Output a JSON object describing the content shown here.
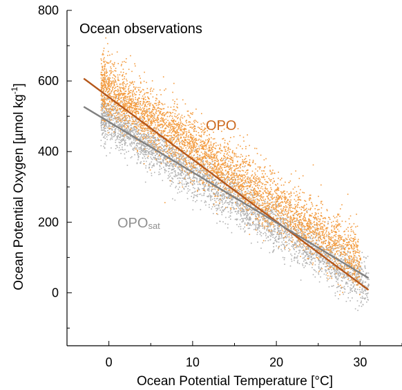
{
  "chart_data": {
    "type": "scatter",
    "title": "",
    "xlabel": "Ocean Potential Temperature [°C]",
    "ylabel_main": "Ocean Potential Oxygen  [µmol kg",
    "ylabel_sup": "-1",
    "ylabel_end": "]",
    "xlim": [
      -5,
      35
    ],
    "ylim": [
      -150,
      800
    ],
    "x_ticks": [
      0,
      10,
      20,
      30
    ],
    "x_tick_labels": [
      "0",
      "10",
      "20",
      "30"
    ],
    "y_ticks": [
      0,
      200,
      400,
      600,
      800
    ],
    "y_tick_labels": [
      "0",
      "200",
      "400",
      "600",
      "800"
    ],
    "grid": false,
    "annotation": "Ocean observations",
    "series": [
      {
        "name": "OPO",
        "color": "#f39a3c",
        "point_cloud": {
          "x_range": [
            -1,
            30
          ],
          "trend_start": [
            0,
            575
          ],
          "trend_end": [
            30,
            90
          ],
          "spread": 45,
          "count": 4200
        }
      },
      {
        "name_main": "OPO",
        "name_sub": "sat",
        "color": "#b0b0b0",
        "point_cloud": {
          "x_range": [
            -1,
            31
          ],
          "trend_start": [
            0,
            490
          ],
          "trend_end": [
            31,
            20
          ],
          "spread": 35,
          "count": 3600
        }
      }
    ],
    "fit_lines": [
      {
        "series": "OPO",
        "color": "#b5571a",
        "start": [
          -3,
          607
        ],
        "end": [
          31,
          8
        ]
      },
      {
        "series": "OPOsat",
        "color": "#808080",
        "start": [
          -3,
          527
        ],
        "end": [
          31,
          42
        ]
      }
    ]
  }
}
